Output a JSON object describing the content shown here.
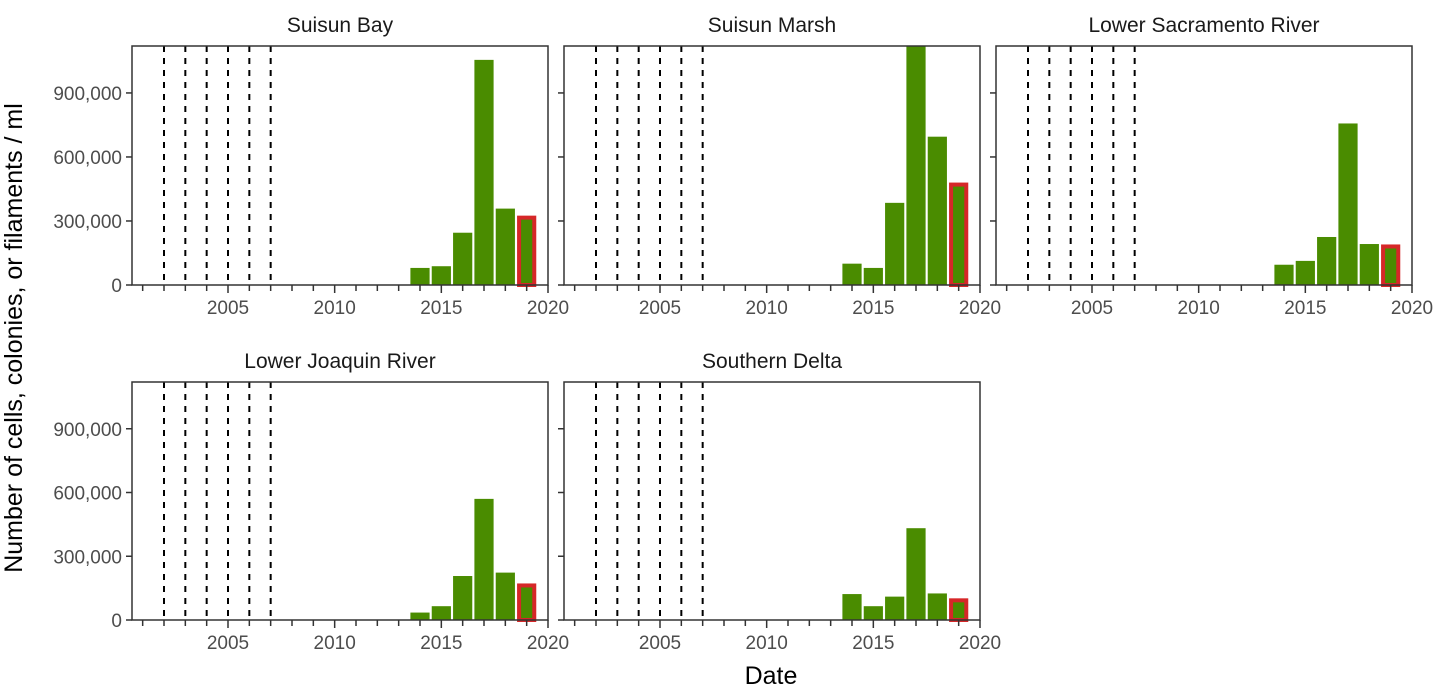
{
  "chart_data": {
    "type": "bar",
    "facets": [
      {
        "title": "Suisun Bay",
        "series": [
          {
            "x": [
              2014,
              2015,
              2016,
              2017,
              2018,
              2019
            ],
            "values": [
              80000,
              88000,
              245000,
              1055000,
              358000,
              325000
            ]
          }
        ]
      },
      {
        "title": "Suisun Marsh",
        "series": [
          {
            "x": [
              2014,
              2015,
              2016,
              2017,
              2018,
              2019
            ],
            "values": [
              100000,
              80000,
              385000,
              1120000,
              695000,
              480000
            ]
          }
        ]
      },
      {
        "title": "Lower Sacramento River",
        "series": [
          {
            "x": [
              2014,
              2015,
              2016,
              2017,
              2018,
              2019
            ],
            "values": [
              95000,
              113000,
              225000,
              757000,
              192000,
              190000
            ]
          }
        ]
      },
      {
        "title": "Lower Joaquin River",
        "series": [
          {
            "x": [
              2014,
              2015,
              2016,
              2017,
              2018,
              2019
            ],
            "values": [
              35000,
              65000,
              207000,
              570000,
              223000,
              172000
            ]
          }
        ]
      },
      {
        "title": "Southern Delta",
        "series": [
          {
            "x": [
              2014,
              2015,
              2016,
              2017,
              2018,
              2019
            ],
            "values": [
              122000,
              65000,
              110000,
              432000,
              125000,
              102000
            ]
          }
        ]
      }
    ],
    "highlight_year": 2019,
    "dashed_reference_years": [
      2002,
      2003,
      2004,
      2005,
      2006,
      2007
    ],
    "xlabel": "Date",
    "ylabel": "Number of cells, colonies, or filaments / ml",
    "xlim": [
      2000.5,
      2020
    ],
    "ylim": [
      0,
      1120000
    ],
    "x_ticks": [
      2005,
      2010,
      2015,
      2020
    ],
    "y_ticks": [
      0,
      300000,
      600000,
      900000
    ],
    "y_tick_labels": [
      "0",
      "300,000",
      "600,000",
      "900,000"
    ],
    "colors": {
      "bar_fill": "#4a8c00",
      "highlight_outline": "#d62728",
      "axis": "#333333",
      "dashed": "#000000"
    }
  }
}
